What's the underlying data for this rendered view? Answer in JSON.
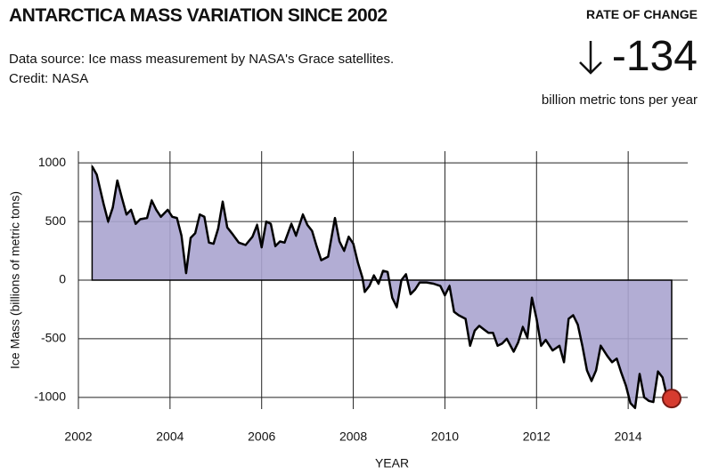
{
  "chart_data": {
    "type": "area",
    "title": "ANTARCTICA MASS VARIATION SINCE 2002",
    "subtitle": "Data source: Ice mass measurement by NASA's Grace satellites.",
    "credit": "Credit: NASA",
    "rate_label": "RATE OF CHANGE",
    "rate_value": -134,
    "rate_unit": "billion metric tons per year",
    "xlabel": "YEAR",
    "ylabel": "Ice Mass (billions of metric tons)",
    "x": [
      2002.3,
      2002.4,
      2002.55,
      2002.65,
      2002.75,
      2002.85,
      2002.95,
      2003.05,
      2003.15,
      2003.25,
      2003.35,
      2003.5,
      2003.6,
      2003.7,
      2003.8,
      2003.95,
      2004.05,
      2004.15,
      2004.25,
      2004.35,
      2004.45,
      2004.55,
      2004.65,
      2004.75,
      2004.85,
      2004.95,
      2005.05,
      2005.15,
      2005.25,
      2005.35,
      2005.5,
      2005.65,
      2005.8,
      2005.9,
      2006.0,
      2006.1,
      2006.2,
      2006.3,
      2006.4,
      2006.5,
      2006.65,
      2006.75,
      2006.9,
      2007.0,
      2007.1,
      2007.2,
      2007.3,
      2007.45,
      2007.6,
      2007.7,
      2007.8,
      2007.9,
      2008.0,
      2008.1,
      2008.2,
      2008.25,
      2008.35,
      2008.45,
      2008.55,
      2008.65,
      2008.75,
      2008.85,
      2008.95,
      2009.05,
      2009.15,
      2009.25,
      2009.35,
      2009.45,
      2009.6,
      2009.75,
      2009.9,
      2010.0,
      2010.1,
      2010.2,
      2010.3,
      2010.45,
      2010.55,
      2010.65,
      2010.75,
      2010.85,
      2010.95,
      2011.05,
      2011.15,
      2011.25,
      2011.35,
      2011.5,
      2011.6,
      2011.7,
      2011.8,
      2011.9,
      2012.0,
      2012.1,
      2012.2,
      2012.35,
      2012.5,
      2012.6,
      2012.7,
      2012.8,
      2012.9,
      2013.0,
      2013.1,
      2013.2,
      2013.3,
      2013.4,
      2013.55,
      2013.65,
      2013.75,
      2013.85,
      2013.95,
      2014.05,
      2014.15,
      2014.25,
      2014.35,
      2014.45,
      2014.55,
      2014.65,
      2014.75,
      2014.85,
      2014.95
    ],
    "series": [
      {
        "color": "#000000",
        "fill": "#aaa4cf",
        "values": [
          970,
          900,
          650,
          500,
          620,
          850,
          700,
          560,
          600,
          480,
          520,
          530,
          680,
          600,
          540,
          600,
          540,
          530,
          380,
          60,
          360,
          400,
          560,
          540,
          320,
          310,
          440,
          670,
          450,
          400,
          320,
          300,
          370,
          470,
          280,
          500,
          480,
          290,
          330,
          320,
          480,
          380,
          560,
          470,
          420,
          290,
          170,
          200,
          530,
          330,
          250,
          370,
          310,
          150,
          20,
          -100,
          -50,
          40,
          -30,
          80,
          70,
          -150,
          -230,
          0,
          50,
          -120,
          -80,
          -20,
          -20,
          -30,
          -50,
          -130,
          -50,
          -270,
          -300,
          -330,
          -560,
          -430,
          -390,
          -420,
          -450,
          -450,
          -560,
          -540,
          -500,
          -610,
          -530,
          -400,
          -490,
          -150,
          -330,
          -560,
          -510,
          -600,
          -560,
          -700,
          -330,
          -300,
          -380,
          -560,
          -770,
          -860,
          -770,
          -560,
          -650,
          -700,
          -670,
          -790,
          -900,
          -1050,
          -1090,
          -800,
          -1000,
          -1030,
          -1040,
          -780,
          -830,
          -1000,
          -1010
        ]
      }
    ],
    "highlight_color": "#d63b2f",
    "xlim": [
      2002,
      2015.3
    ],
    "xticks": [
      2002,
      2004,
      2006,
      2008,
      2010,
      2012,
      2014
    ],
    "ylim": [
      -1100,
      1100
    ],
    "yticks": [
      -1000,
      -500,
      0,
      500,
      1000
    ],
    "grid": true
  }
}
